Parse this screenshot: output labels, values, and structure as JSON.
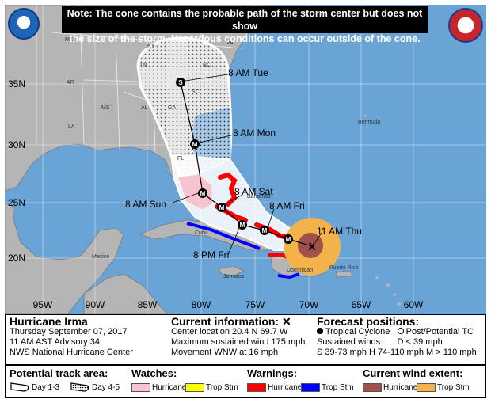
{
  "note": {
    "line1": "Note: The cone contains the probable path of the storm center but does not show",
    "line2": "the size of the storm. Hazardous conditions can occur outside of the cone."
  },
  "axes": {
    "lat_labels": [
      "35N",
      "30N",
      "25N",
      "20N"
    ],
    "lon_labels": [
      "95W",
      "90W",
      "85W",
      "80W",
      "75W",
      "70W",
      "65W",
      "60W"
    ]
  },
  "places": {
    "states": [
      "MO",
      "KY",
      "VA",
      "TN",
      "NC",
      "AR",
      "SC",
      "AL",
      "GA",
      "MS",
      "LA",
      "FL"
    ],
    "bermuda": "Bermuda",
    "bahamas": "Bahamas",
    "cuba": "Cuba",
    "mexico": "Mexico",
    "jamaica": "Jamaica",
    "dominican": "Dominican",
    "puerto_rico": "Puerto Rico"
  },
  "forecast_points": [
    {
      "label": "8 AM Tue",
      "symbol": "S"
    },
    {
      "label": "8 AM Mon",
      "symbol": "M"
    },
    {
      "label": "8 AM Sun",
      "symbol": "M"
    },
    {
      "label": "8 AM Sat",
      "symbol": "M"
    },
    {
      "label": "8 AM Fri",
      "symbol": "M"
    },
    {
      "label": "8 PM Fri",
      "symbol": "M"
    },
    {
      "label": "11 AM Thu",
      "symbol": "X"
    }
  ],
  "storm": {
    "title": "Hurricane Irma",
    "date": "Thursday September 07, 2017",
    "advisory": "11 AM AST Advisory 34",
    "center": "NWS National Hurricane Center"
  },
  "current": {
    "title": "Current information:",
    "location": "Center location 20.4 N 69.7 W",
    "wind": "Maximum sustained wind 175 mph",
    "movement": "Movement WNW at 16 mph"
  },
  "forecast_legend": {
    "title": "Forecast positions:",
    "tropical": "Tropical Cyclone",
    "post": "Post/Potential TC",
    "winds_label": "Sustained winds:",
    "d": "D < 39 mph",
    "s": "S 39-73 mph",
    "h": "H 74-110 mph",
    "m": "M > 110 mph"
  },
  "track_area": {
    "title": "Potential track area:",
    "day13": "Day 1-3",
    "day45": "Day 4-5"
  },
  "watches": {
    "title": "Watches:",
    "hurricane": "Hurricane",
    "tropstm": "Trop Stm",
    "colors": {
      "hurricane": "#f7c3cf",
      "tropstm": "#ffff00"
    }
  },
  "warnings": {
    "title": "Warnings:",
    "hurricane": "Hurricane",
    "tropstm": "Trop Stm",
    "colors": {
      "hurricane": "#ff0000",
      "tropstm": "#0000ff"
    }
  },
  "wind_extent": {
    "title": "Current wind extent:",
    "hurricane": "Hurricane",
    "tropstm": "Trop Stm",
    "colors": {
      "hurricane": "#a0524a",
      "tropstm": "#f2b34a"
    }
  },
  "colors": {
    "ocean": "#6aa4d6",
    "land": "#b5b5b5",
    "cone_white": "#ffffff"
  }
}
